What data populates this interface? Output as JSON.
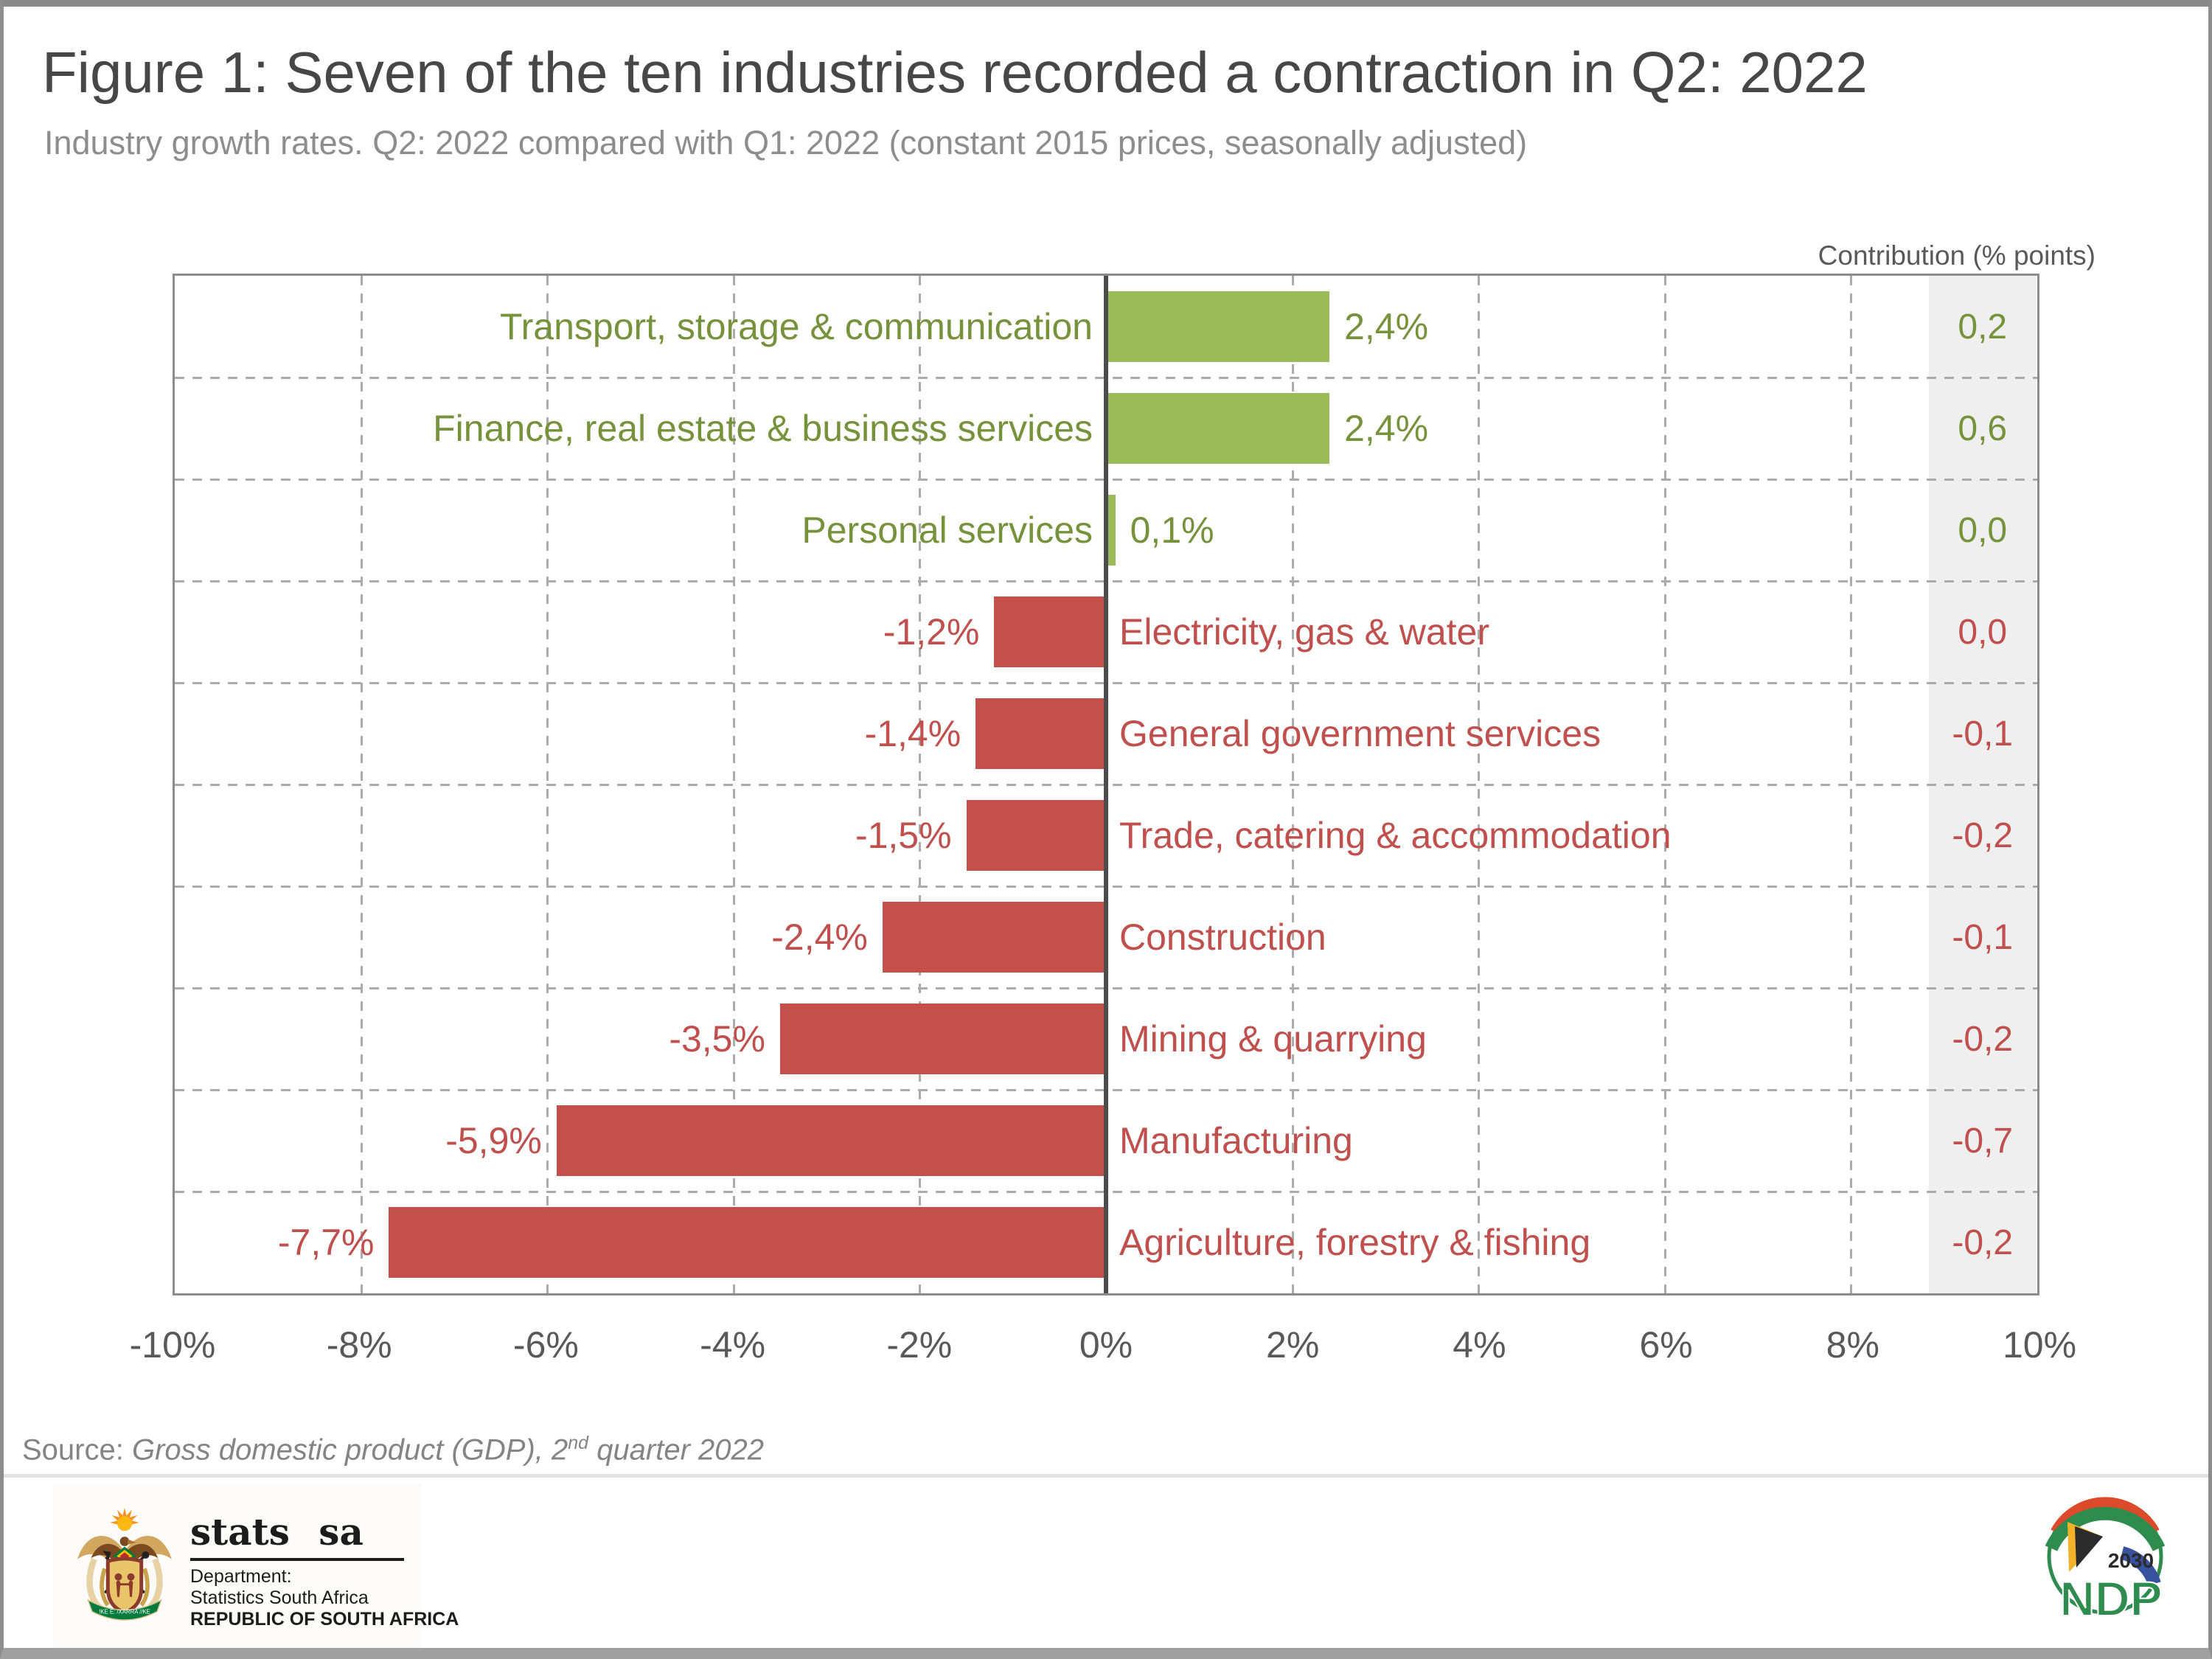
{
  "title": "Figure 1: Seven of the ten industries recorded a contraction in Q2: 2022",
  "subtitle": "Industry growth rates. Q2: 2022 compared with Q1: 2022 (constant 2015 prices, seasonally adjusted)",
  "contribution_header": "Contribution (% points)",
  "source": {
    "prefix": "Source: ",
    "body_pre": "Gross domestic product (GDP), 2",
    "sup": "nd",
    "body_post": " quarter 2022"
  },
  "footer": {
    "statssa_wordmark": "stats sa",
    "dept_line1": "Department:",
    "dept_line2": "Statistics South Africa",
    "dept_line3": "REPUBLIC OF SOUTH AFRICA",
    "banner_text": "!KE E: /XARRA //KE",
    "ndp_year": "2030",
    "ndp_name": "NDP"
  },
  "colors": {
    "positive": "#9BBB59",
    "positive_text": "#76923B",
    "negative": "#C3504A",
    "negative_text": "#C0504D",
    "grid": "#ABABAB",
    "axis_border": "#8C8C8C",
    "zero_line": "#4C4C4C",
    "contribution_bg": "#EFEFEF",
    "axis_text": "#595959"
  },
  "chart_data": {
    "type": "bar",
    "orientation": "horizontal",
    "title": "Figure 1: Seven of the ten industries recorded a contraction in Q2: 2022",
    "subtitle": "Industry growth rates. Q2: 2022 compared with Q1: 2022 (constant 2015 prices, seasonally adjusted)",
    "categories": [
      "Transport, storage & communication",
      "Finance, real estate & business services",
      "Personal services",
      "Electricity, gas & water",
      "General government services",
      "Trade, catering & accommodation",
      "Construction",
      "Mining & quarrying",
      "Manufacturing",
      "Agriculture, forestry & fishing"
    ],
    "series": [
      {
        "name": "Industry growth rate",
        "values": [
          2.4,
          2.4,
          0.1,
          -1.2,
          -1.4,
          -1.5,
          -2.4,
          -3.5,
          -5.9,
          -7.7
        ],
        "value_labels": [
          "2,4%",
          "2,4%",
          "0,1%",
          "-1,2%",
          "-1,4%",
          "-1,5%",
          "-2,4%",
          "-3,5%",
          "-5,9%",
          "-7,7%"
        ]
      },
      {
        "name": "Contribution (% points)",
        "values": [
          0.2,
          0.6,
          0.0,
          0.0,
          -0.1,
          -0.2,
          -0.1,
          -0.2,
          -0.7,
          -0.2
        ],
        "value_labels": [
          "0,2",
          "0,6",
          "0,0",
          "0,0",
          "-0,1",
          "-0,2",
          "-0,1",
          "-0,2",
          "-0,7",
          "-0,2"
        ]
      }
    ],
    "xlim": [
      -10,
      10
    ],
    "x_tick_labels": [
      "-10%",
      "-8%",
      "-6%",
      "-4%",
      "-2%",
      "0%",
      "2%",
      "4%",
      "6%",
      "8%",
      "10%"
    ],
    "grid": "dashed",
    "legend": "none"
  }
}
